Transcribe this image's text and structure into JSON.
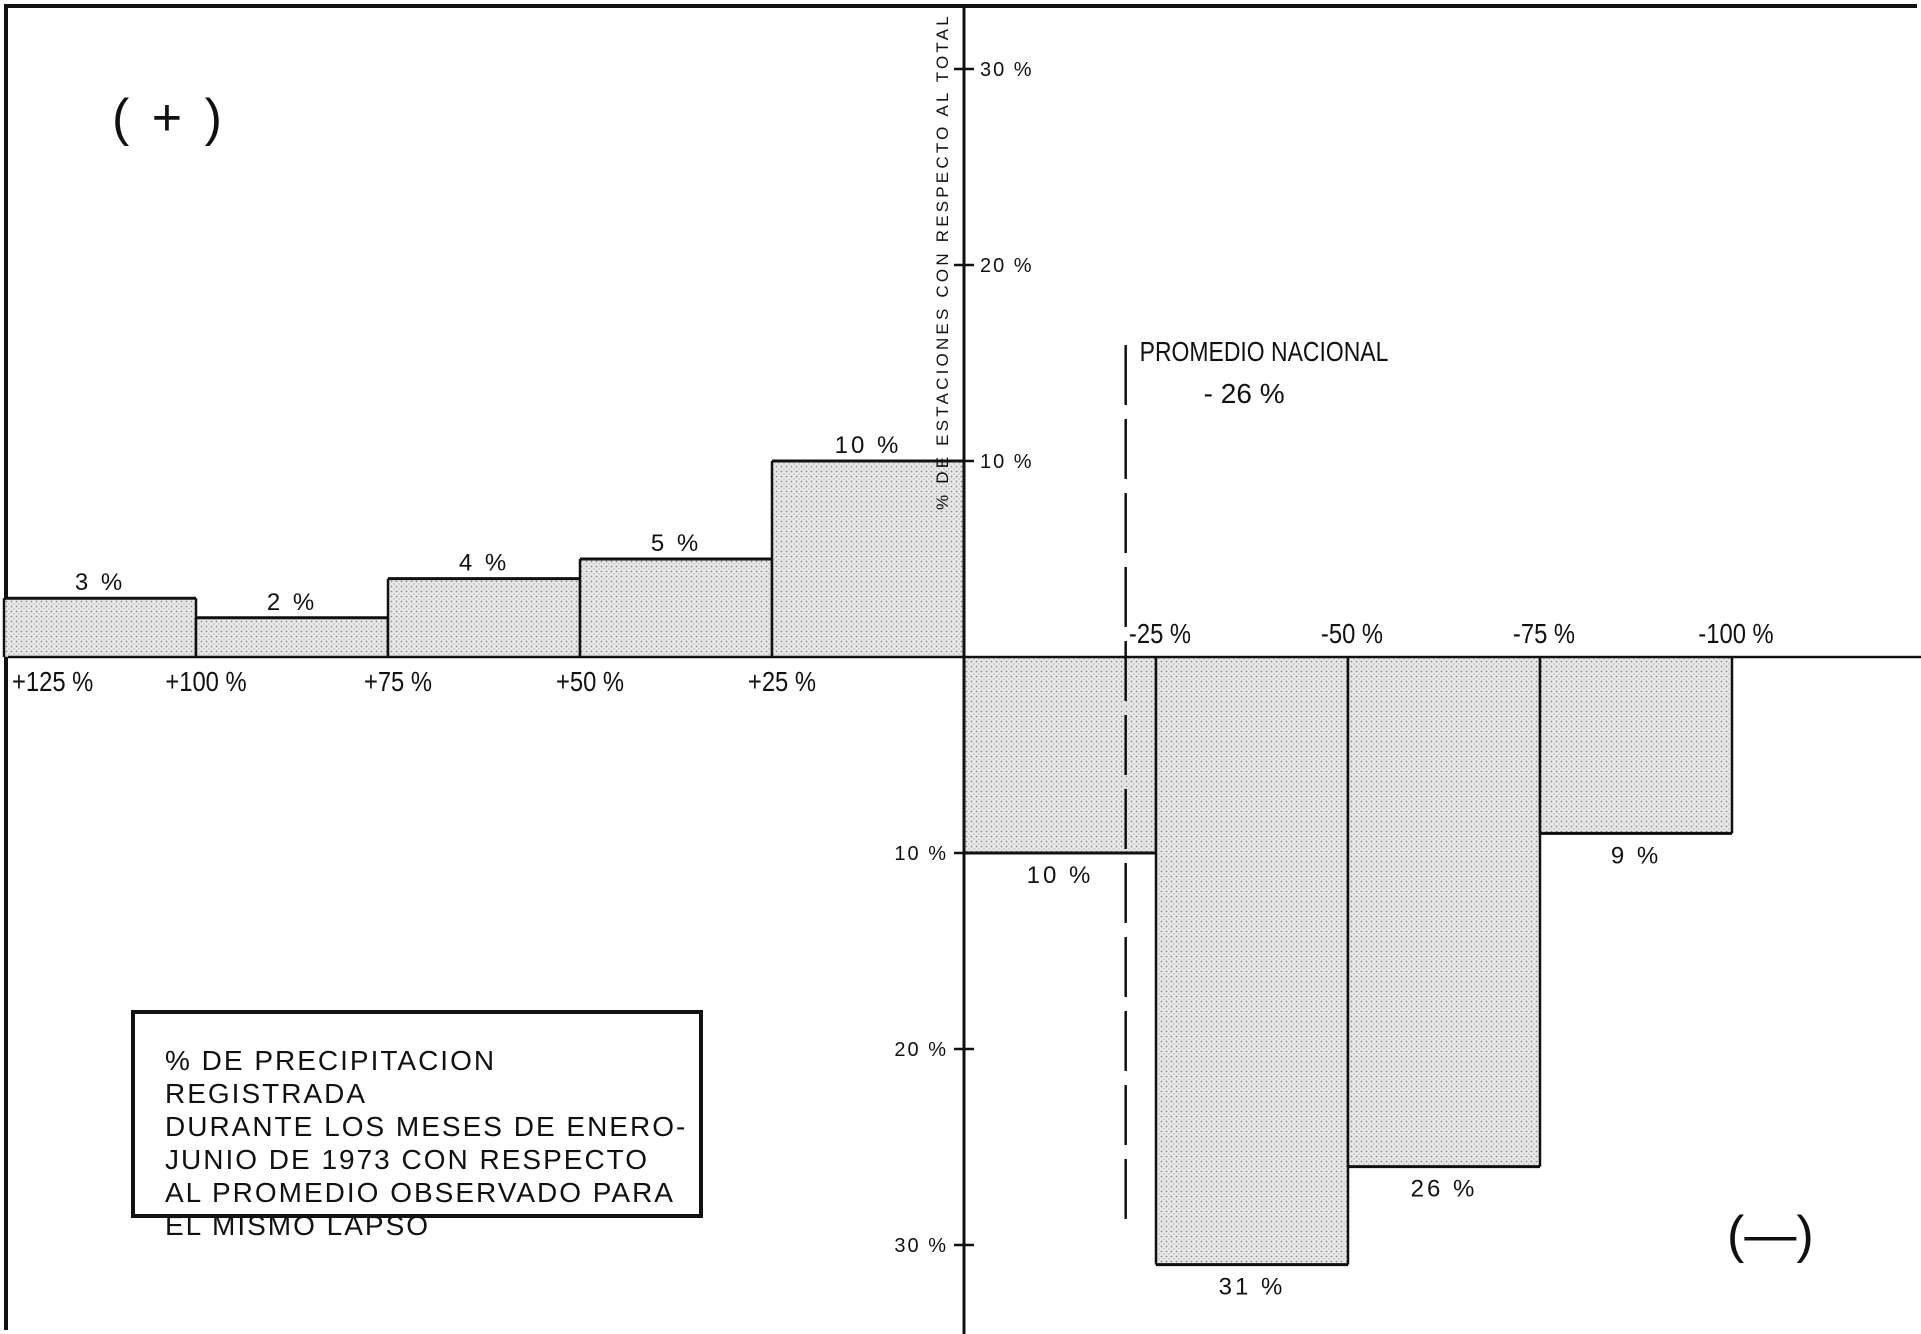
{
  "chart_data": {
    "type": "bar",
    "y_axis_title": "% DE ESTACIONES CON RESPECTO AL TOTAL",
    "positive_marker": "( + )",
    "negative_marker": "(—)",
    "categories": [
      "+125 % / +100 %",
      "+100 % / +75 %",
      "+75 % / +50 %",
      "+50 % / +25 %",
      "+25 % / 0",
      "0 / -25 %",
      "-25 % / -50 %",
      "-50 % / -75 %",
      "-75 % / -100 %"
    ],
    "x_boundaries": [
      125,
      100,
      75,
      50,
      25,
      0,
      -25,
      -50,
      -75,
      -100
    ],
    "values": [
      3,
      2,
      4,
      5,
      10,
      -10,
      -31,
      -26,
      -9
    ],
    "value_labels": [
      "3 %",
      "2 %",
      "4 %",
      "5 %",
      "10 %",
      "10 %",
      "31 %",
      "26 %",
      "9 %"
    ],
    "x_tick_labels_top": [
      "+125 %",
      "+100 %",
      "+75 %",
      "+50 %",
      "+25 %"
    ],
    "x_tick_labels_bottom": [
      "-25 %",
      "-50 %",
      "-75 %",
      "-100 %"
    ],
    "y_ticks": [
      {
        "value": 30,
        "label": "30 %"
      },
      {
        "value": 20,
        "label": "20 %"
      },
      {
        "value": 10,
        "label": "10 %"
      },
      {
        "value": -10,
        "label": "10 %"
      },
      {
        "value": -20,
        "label": "20 %"
      },
      {
        "value": -30,
        "label": "30 %"
      }
    ],
    "ylim": [
      -36,
      33
    ],
    "reference_line": {
      "x": -26,
      "label_line1": "PROMEDIO NACIONAL",
      "label_line2": "- 26 %"
    },
    "legend_text": "% DE PRECIPITACION REGISTRADA\nDURANTE LOS MESES DE ENERO-\nJUNIO DE 1973 CON RESPECTO\nAL PROMEDIO OBSERVADO PARA\nEL MISMO LAPSO",
    "grid": false,
    "colors": {
      "ink": "#111111",
      "fill": "#e6e6e6",
      "dots": "#9a9a9a"
    }
  }
}
